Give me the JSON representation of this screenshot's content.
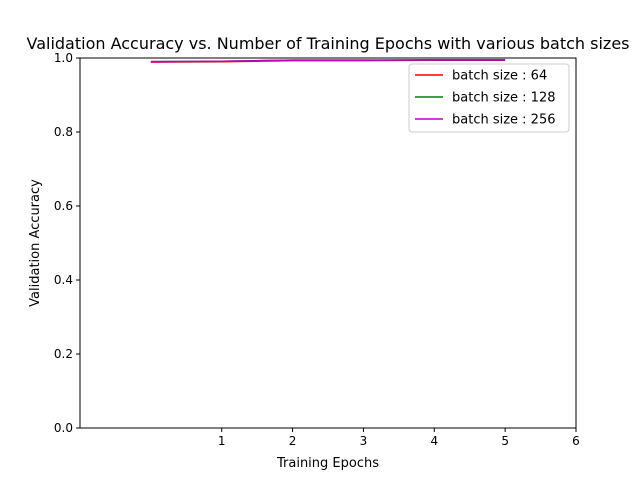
{
  "chart_data": {
    "type": "line",
    "title": "Validation Accuracy vs. Number of Training Epochs with various batch sizes",
    "xlabel": "Training Epochs",
    "ylabel": "Validation Accuracy",
    "xlim": [
      -1,
      6
    ],
    "ylim": [
      0,
      1
    ],
    "xticks": [
      1,
      2,
      3,
      4,
      5,
      6
    ],
    "yticks": [
      0.0,
      0.2,
      0.4,
      0.6,
      0.8,
      1.0
    ],
    "xtick_labels": [
      "1",
      "2",
      "3",
      "4",
      "5",
      "6"
    ],
    "ytick_labels": [
      "0.0",
      "0.2",
      "0.4",
      "0.6",
      "0.8",
      "1.0"
    ],
    "grid": false,
    "legend_position": "upper-right",
    "x": [
      0,
      1,
      2,
      3,
      4,
      5
    ],
    "series": [
      {
        "name": "batch size : 64",
        "color": "#ff0000",
        "values": [
          0.989,
          0.99,
          0.993,
          0.993,
          0.994,
          0.994
        ]
      },
      {
        "name": "batch size : 128",
        "color": "#008000",
        "values": [
          0.99,
          0.991,
          0.994,
          0.994,
          0.995,
          0.995
        ]
      },
      {
        "name": "batch size : 256",
        "color": "#bf00bf",
        "values": [
          0.99,
          0.991,
          0.994,
          0.994,
          0.995,
          0.995
        ]
      }
    ]
  }
}
